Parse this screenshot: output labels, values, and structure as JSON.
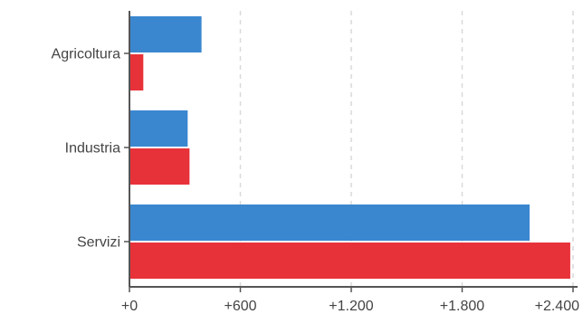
{
  "chart_data": {
    "type": "bar",
    "orientation": "horizontal",
    "categories": [
      "Agricoltura",
      "Industria",
      "Servizi"
    ],
    "series": [
      {
        "values": [
          390,
          315,
          2165
        ],
        "color": "#3a87d0"
      },
      {
        "values": [
          75,
          325,
          2385
        ],
        "color": "#e8323a"
      }
    ],
    "x_ticks": [
      0,
      600,
      1200,
      1800,
      2400
    ],
    "x_tick_labels": [
      "+0",
      "+600",
      "+1.200",
      "+1.800",
      "+2.400"
    ],
    "xlim": [
      0,
      2400
    ],
    "grid": "vertical-dashed",
    "title": "",
    "xlabel": "",
    "ylabel": ""
  }
}
